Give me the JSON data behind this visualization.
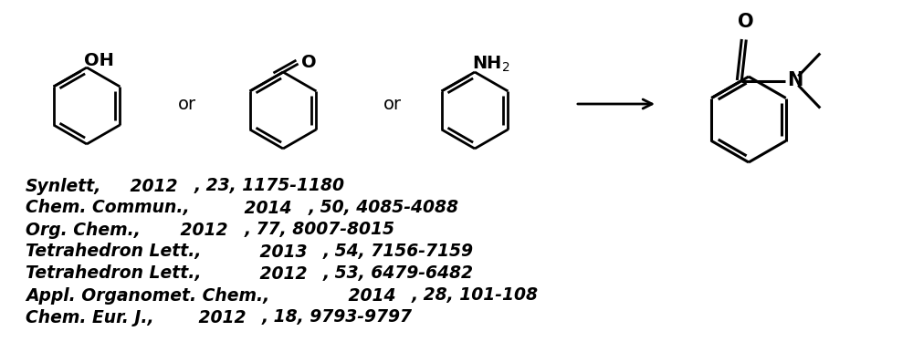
{
  "background_color": "#ffffff",
  "fig_width": 10.0,
  "fig_height": 3.86,
  "dpi": 100,
  "references": [
    {
      "italic": "Synlett",
      "bold_year": "2012",
      "rest": ", 23, 1175-1180"
    },
    {
      "italic": "Chem. Commun.",
      "bold_year": "2014",
      "rest": ", 50, 4085-4088"
    },
    {
      "italic": "Org. Chem.",
      "bold_year": "2012",
      "rest": ", 77, 8007-8015"
    },
    {
      "italic": "Tetrahedron Lett.",
      "bold_year": "2013",
      "rest": ", 54, 7156-7159"
    },
    {
      "italic": "Tetrahedron Lett.",
      "bold_year": "2012",
      "rest": ", 53, 6479-6482"
    },
    {
      "italic": "Appl. Organomet. Chem.",
      "bold_year": "2014",
      "rest": ", 28, 101-108"
    },
    {
      "italic": "Chem. Eur. J.",
      "bold_year": "2012",
      "rest": ", 18, 9793-9797"
    }
  ],
  "lw": 2.0,
  "lc": "#000000"
}
